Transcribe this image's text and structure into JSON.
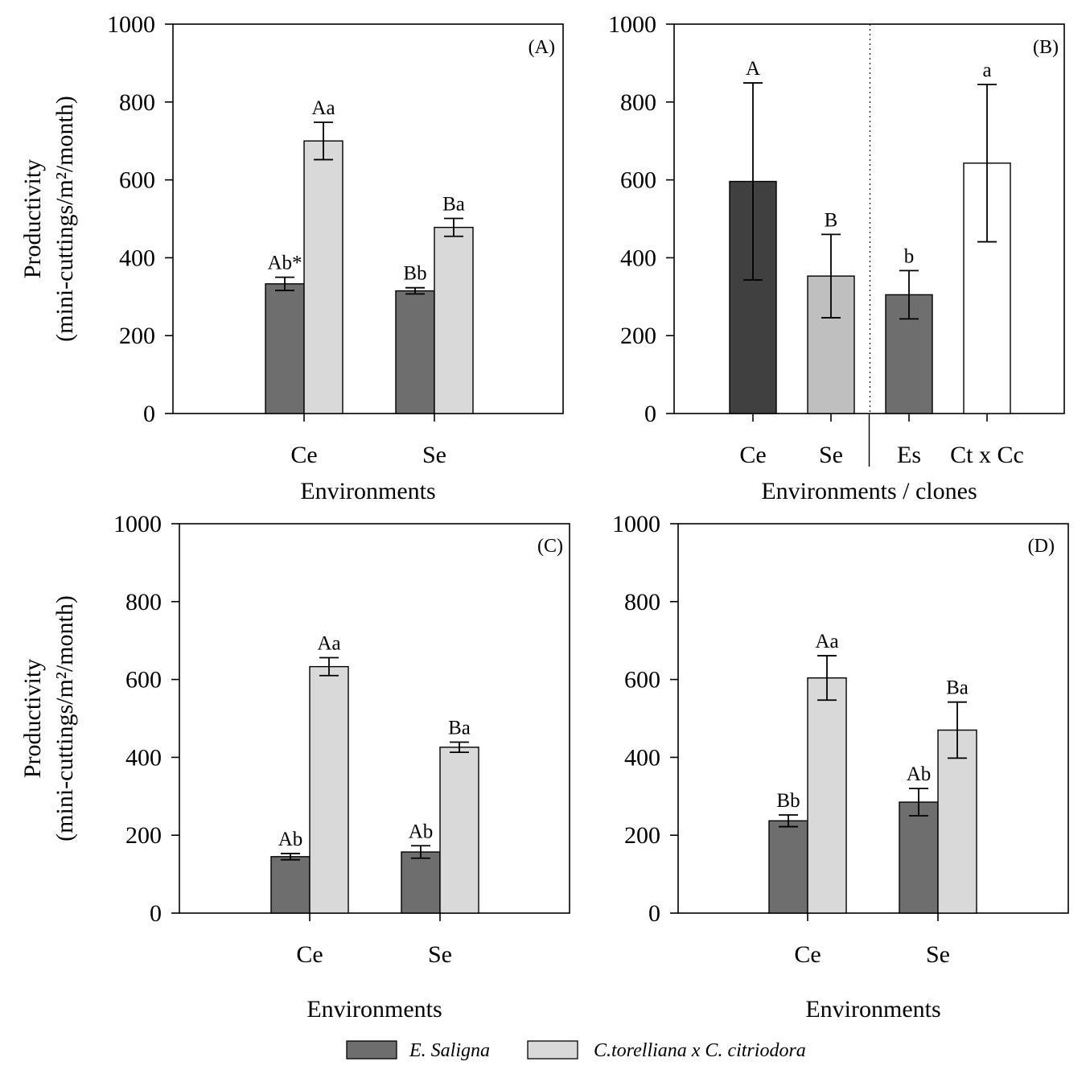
{
  "chart_data": [
    {
      "type": "bar",
      "panel_label": "(A)",
      "categories": [
        "Ce",
        "Se"
      ],
      "xlabel": "Environments",
      "ylabel_line1": "Productivity",
      "ylabel_line2": "(mini-cuttings/m²/month)",
      "ylim": [
        0,
        1000
      ],
      "yticks": [
        "0",
        "200",
        "400",
        "600",
        "800",
        "1000"
      ],
      "series": [
        {
          "name": "E. Saligna",
          "color": "#6e6e6e",
          "values": [
            333,
            315
          ],
          "errors": [
            17,
            8
          ],
          "labels": [
            "Ab*",
            "Bb"
          ]
        },
        {
          "name": "C.torelliana x C. citriodora",
          "color": "#d9d9d9",
          "values": [
            700,
            478
          ],
          "errors": [
            48,
            23
          ],
          "labels": [
            "Aa",
            "Ba"
          ]
        }
      ]
    },
    {
      "type": "bar",
      "panel_label": "(B)",
      "xlabel": "Environments / clones",
      "ylim": [
        0,
        1000
      ],
      "yticks": [
        "0",
        "200",
        "400",
        "600",
        "800",
        "1000"
      ],
      "bars": [
        {
          "category": "Ce",
          "value": 596,
          "error": 253,
          "label": "A",
          "color": "#404040"
        },
        {
          "category": "Se",
          "value": 353,
          "error": 107,
          "label": "B",
          "color": "#bfbfbf"
        },
        {
          "category": "Es",
          "value": 305,
          "error": 62,
          "label": "b",
          "color": "#6e6e6e"
        },
        {
          "category": "Ct x Cc",
          "value": 643,
          "error": 202,
          "label": "a",
          "color": "#ffffff"
        }
      ]
    },
    {
      "type": "bar",
      "panel_label": "(C)",
      "categories": [
        "Ce",
        "Se"
      ],
      "xlabel": "Environments",
      "ylabel_line1": "Productivity",
      "ylabel_line2": "(mini-cuttings/m²/month)",
      "ylim": [
        0,
        1000
      ],
      "yticks": [
        "0",
        "200",
        "400",
        "600",
        "800",
        "1000"
      ],
      "series": [
        {
          "name": "E. Saligna",
          "color": "#6e6e6e",
          "values": [
            145,
            157
          ],
          "errors": [
            8,
            16
          ],
          "labels": [
            "Ab",
            "Ab"
          ]
        },
        {
          "name": "C.torelliana x C. citriodora",
          "color": "#d9d9d9",
          "values": [
            633,
            426
          ],
          "errors": [
            23,
            13
          ],
          "labels": [
            "Aa",
            "Ba"
          ]
        }
      ]
    },
    {
      "type": "bar",
      "panel_label": "(D)",
      "categories": [
        "Ce",
        "Se"
      ],
      "xlabel": "Environments",
      "ylim": [
        0,
        1000
      ],
      "yticks": [
        "0",
        "200",
        "400",
        "600",
        "800",
        "1000"
      ],
      "series": [
        {
          "name": "E. Saligna",
          "color": "#6e6e6e",
          "values": [
            237,
            285
          ],
          "errors": [
            15,
            35
          ],
          "labels": [
            "Bb",
            "Ab"
          ]
        },
        {
          "name": "C.torelliana x C. citriodora",
          "color": "#d9d9d9",
          "values": [
            604,
            470
          ],
          "errors": [
            57,
            72
          ],
          "labels": [
            "Aa",
            "Ba"
          ]
        }
      ]
    }
  ],
  "legend": {
    "placement": "bottom-center",
    "items": [
      {
        "name": "E. Saligna",
        "color": "#6e6e6e"
      },
      {
        "name": "C.torelliana x C. citriodora",
        "color": "#d9d9d9"
      }
    ]
  }
}
